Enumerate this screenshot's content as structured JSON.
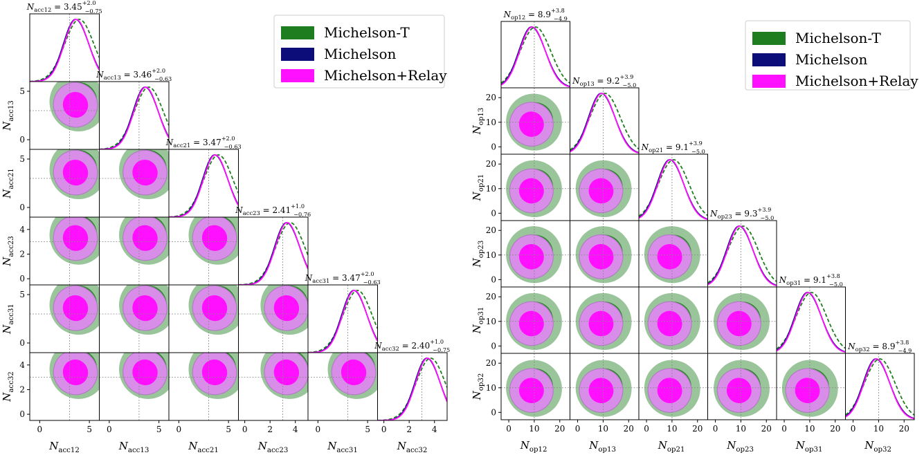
{
  "colors": {
    "michelson_t": "#1e7d1e",
    "michelson": "#0d0d7a",
    "michelson_relay": "#ff10ff",
    "truth_line": "#888888"
  },
  "chart_data": [
    {
      "type": "corner",
      "legend": {
        "placement": "top-right",
        "entries": [
          "Michelson-T",
          "Michelson",
          "Michelson+Relay"
        ]
      },
      "params": [
        {
          "name": "acc12",
          "median": "3.45",
          "plus": "+2.0",
          "minus": "−0.75",
          "truth": 3.0,
          "peak": 3.6
        },
        {
          "name": "acc13",
          "median": "3.46",
          "plus": "+2.0",
          "minus": "−0.63",
          "truth": 3.0,
          "peak": 3.6
        },
        {
          "name": "acc21",
          "median": "3.47",
          "plus": "+2.0",
          "minus": "−0.63",
          "truth": 3.0,
          "peak": 3.6
        },
        {
          "name": "acc23",
          "median": "2.41",
          "plus": "+1.0",
          "minus": "−0.76",
          "truth": 3.0,
          "peak": 3.3
        },
        {
          "name": "acc31",
          "median": "3.47",
          "plus": "+2.0",
          "minus": "−0.63",
          "truth": 3.0,
          "peak": 3.6
        },
        {
          "name": "acc32",
          "median": "2.40",
          "plus": "+1.0",
          "minus": "−0.75",
          "truth": 3.0,
          "peak": 3.4
        }
      ],
      "lim": [
        -1,
        6
      ],
      "lim_small": [
        -0.5,
        5
      ],
      "ticks": [
        0,
        5
      ],
      "ticks_small": [
        0,
        2,
        4
      ],
      "small_axis_params": [
        "acc23",
        "acc32"
      ]
    },
    {
      "type": "corner",
      "legend": {
        "placement": "top-right",
        "entries": [
          "Michelson-T",
          "Michelson",
          "Michelson+Relay"
        ]
      },
      "params": [
        {
          "name": "op12",
          "median": "8.9",
          "plus": "+3.8",
          "minus": "−4.9",
          "truth": 10,
          "peak": 8.9
        },
        {
          "name": "op13",
          "median": "9.2",
          "plus": "+3.9",
          "minus": "−5.0",
          "truth": 10,
          "peak": 9.2
        },
        {
          "name": "op21",
          "median": "9.1",
          "plus": "+3.9",
          "minus": "−5.0",
          "truth": 10,
          "peak": 9.1
        },
        {
          "name": "op23",
          "median": "9.3",
          "plus": "+3.9",
          "minus": "−5.0",
          "truth": 10,
          "peak": 9.3
        },
        {
          "name": "op31",
          "median": "9.1",
          "plus": "+3.8",
          "minus": "−5.0",
          "truth": 10,
          "peak": 9.1
        },
        {
          "name": "op32",
          "median": "8.9",
          "plus": "+3.8",
          "minus": "−4.9",
          "truth": 10,
          "peak": 8.9
        }
      ],
      "lim": [
        -3,
        24
      ],
      "ticks": [
        0,
        10,
        20
      ]
    }
  ]
}
